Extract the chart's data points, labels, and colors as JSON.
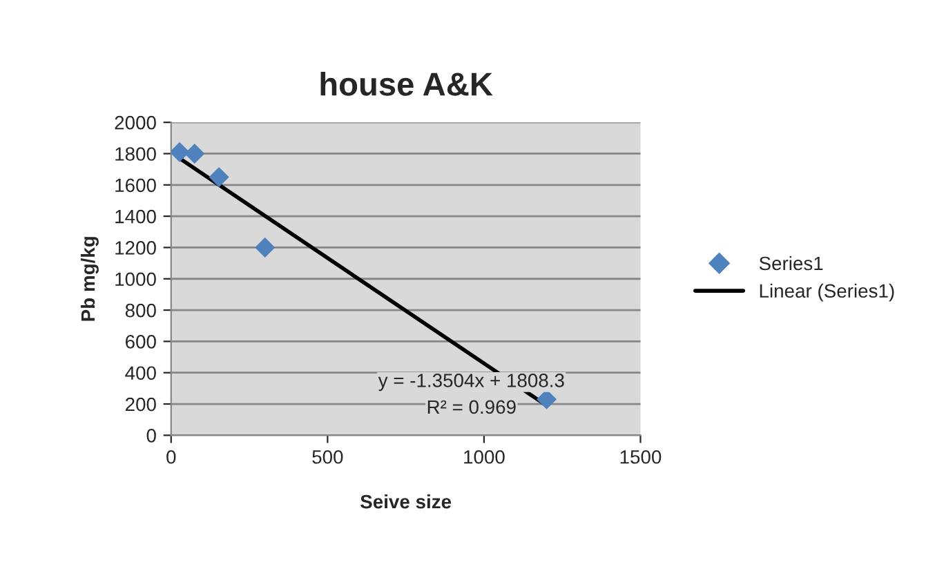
{
  "chart_data": {
    "type": "scatter",
    "title": "house A&K",
    "xlabel": "Seive size",
    "ylabel": "Pb mg/kg",
    "series": [
      {
        "name": "Series1",
        "color": "#4f81bd",
        "marker": "diamond",
        "x": [
          27,
          75,
          153,
          300,
          1200
        ],
        "values": [
          1810,
          1800,
          1650,
          1200,
          230
        ]
      },
      {
        "name": "Linear (Series1)",
        "type": "line",
        "color": "#000000",
        "marker": "none",
        "x": [
          27,
          1200
        ],
        "values": [
          1770,
          190
        ]
      }
    ],
    "annotations": [
      "y = -1.3504x + 1808.3",
      "R² = 0.969"
    ],
    "xlim": [
      0,
      1500
    ],
    "xticks": [
      0,
      500,
      1000,
      1500
    ],
    "ylim": [
      0,
      2000
    ],
    "yticks": [
      0,
      200,
      400,
      600,
      800,
      1000,
      1200,
      1400,
      1600,
      1800,
      2000
    ],
    "grid": "y",
    "legend": "right"
  }
}
